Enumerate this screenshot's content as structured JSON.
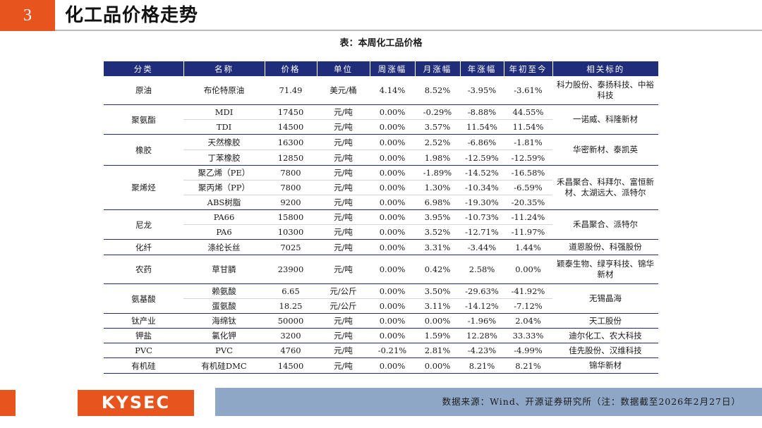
{
  "header": {
    "section_number": "3",
    "title": "化工品价格走势"
  },
  "table": {
    "caption": "表：本周化工品价格",
    "columns": [
      "分类",
      "名称",
      "价格",
      "单位",
      "周涨幅",
      "月涨幅",
      "年涨幅",
      "年初至今",
      "相关标的"
    ],
    "groups": [
      {
        "category": "原油",
        "related": "科力股份、泰扬科技、中裕科技",
        "rows": [
          {
            "name": "布伦特原油",
            "price": "71.49",
            "unit": "美元/桶",
            "week": "4.14%",
            "month": "8.52%",
            "year": "-3.95%",
            "ytd": "-3.61%"
          }
        ]
      },
      {
        "category": "聚氨酯",
        "related": "一诺威、科隆新材",
        "rows": [
          {
            "name": "MDI",
            "price": "17450",
            "unit": "元/吨",
            "week": "0.00%",
            "month": "-0.29%",
            "year": "-8.88%",
            "ytd": "44.55%"
          },
          {
            "name": "TDI",
            "price": "14500",
            "unit": "元/吨",
            "week": "0.00%",
            "month": "3.57%",
            "year": "11.54%",
            "ytd": "11.54%"
          }
        ]
      },
      {
        "category": "橡胶",
        "related": "华密新材、泰凯英",
        "rows": [
          {
            "name": "天然橡胶",
            "price": "16300",
            "unit": "元/吨",
            "week": "0.00%",
            "month": "2.52%",
            "year": "-6.86%",
            "ytd": "-1.81%"
          },
          {
            "name": "丁苯橡胶",
            "price": "12850",
            "unit": "元/吨",
            "week": "0.00%",
            "month": "1.98%",
            "year": "-12.59%",
            "ytd": "-12.59%"
          }
        ]
      },
      {
        "category": "聚烯烃",
        "related": "禾昌聚合、科拜尔、富恒新材、太湖远大、派特尔",
        "rows": [
          {
            "name": "聚乙烯（PE）",
            "price": "7800",
            "unit": "元/吨",
            "week": "0.00%",
            "month": "-1.89%",
            "year": "-14.52%",
            "ytd": "-16.58%"
          },
          {
            "name": "聚丙烯（PP）",
            "price": "7800",
            "unit": "元/吨",
            "week": "0.00%",
            "month": "1.30%",
            "year": "-10.34%",
            "ytd": "-6.59%"
          },
          {
            "name": "ABS树脂",
            "price": "9200",
            "unit": "元/吨",
            "week": "0.00%",
            "month": "6.98%",
            "year": "-19.30%",
            "ytd": "-20.35%"
          }
        ]
      },
      {
        "category": "尼龙",
        "related": "禾昌聚合、派特尔",
        "rows": [
          {
            "name": "PA66",
            "price": "15800",
            "unit": "元/吨",
            "week": "0.00%",
            "month": "3.95%",
            "year": "-10.73%",
            "ytd": "-11.24%"
          },
          {
            "name": "PA6",
            "price": "10300",
            "unit": "元/吨",
            "week": "0.00%",
            "month": "3.52%",
            "year": "-12.71%",
            "ytd": "-11.97%"
          }
        ]
      },
      {
        "category": "化纤",
        "related": "道恩股份、科强股份",
        "rows": [
          {
            "name": "涤纶长丝",
            "price": "7025",
            "unit": "元/吨",
            "week": "0.00%",
            "month": "3.31%",
            "year": "-3.44%",
            "ytd": "1.44%"
          }
        ]
      },
      {
        "category": "农药",
        "related": "颖泰生物、绿亨科技、锦华新材",
        "rows": [
          {
            "name": "草甘膦",
            "price": "23900",
            "unit": "元/吨",
            "week": "0.00%",
            "month": "0.42%",
            "year": "2.58%",
            "ytd": "0.00%"
          }
        ]
      },
      {
        "category": "氨基酸",
        "related": "无锡晶海",
        "rows": [
          {
            "name": "赖氨酸",
            "price": "6.65",
            "unit": "元/公斤",
            "week": "0.00%",
            "month": "3.50%",
            "year": "-29.63%",
            "ytd": "-41.92%"
          },
          {
            "name": "蛋氨酸",
            "price": "18.25",
            "unit": "元/公斤",
            "week": "0.00%",
            "month": "3.11%",
            "year": "-14.12%",
            "ytd": "-7.12%"
          }
        ]
      },
      {
        "category": "钛产业",
        "related": "天工股份",
        "rows": [
          {
            "name": "海绵钛",
            "price": "50000",
            "unit": "元/吨",
            "week": "0.00%",
            "month": "0.00%",
            "year": "-1.96%",
            "ytd": "2.04%"
          }
        ]
      },
      {
        "category": "钾盐",
        "related": "迪尔化工、农大科技",
        "rows": [
          {
            "name": "氯化钾",
            "price": "3200",
            "unit": "元/吨",
            "week": "0.00%",
            "month": "1.59%",
            "year": "12.28%",
            "ytd": "33.33%"
          }
        ]
      },
      {
        "category": "PVC",
        "related": "佳先股份、汉维科技",
        "rows": [
          {
            "name": "PVC",
            "price": "4760",
            "unit": "元/吨",
            "week": "-0.21%",
            "month": "2.81%",
            "year": "-4.23%",
            "ytd": "-4.99%"
          }
        ]
      },
      {
        "category": "有机硅",
        "related": "锦华新材",
        "rows": [
          {
            "name": "有机硅DMC",
            "price": "14500",
            "unit": "元/吨",
            "week": "0.00%",
            "month": "0.00%",
            "year": "8.21%",
            "ytd": "8.21%"
          }
        ]
      }
    ]
  },
  "footer": {
    "logo_text": "KYSEC",
    "source": "数据来源：Wind、开源证券研究所（注：数据截至2026年2月27日）"
  },
  "colors": {
    "accent": "#e8541e",
    "header_navy": "#1f2d7a",
    "footer_blue": "#8fa7c6"
  }
}
